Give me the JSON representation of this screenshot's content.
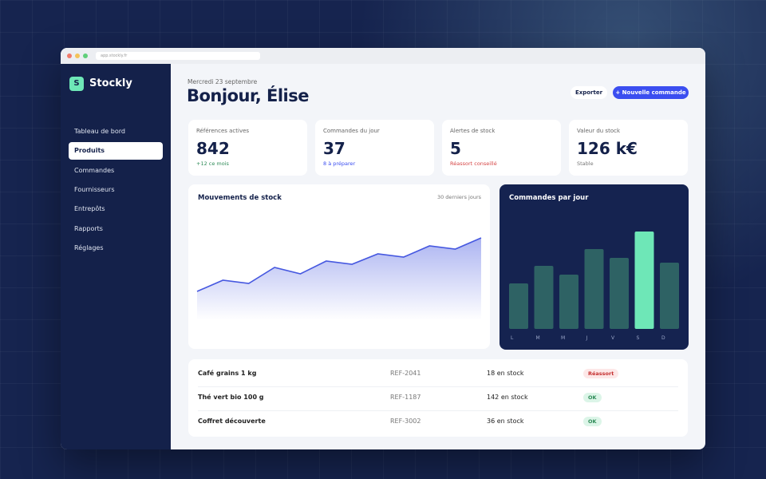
{
  "browser": {
    "url": "app.stockly.fr"
  },
  "sidebar": {
    "logo": "S",
    "brand": "Stockly",
    "nav": [
      "Tableau de bord",
      "Produits",
      "Commandes",
      "Fournisseurs",
      "Entrepôts",
      "Rapports",
      "Réglages"
    ]
  },
  "header": {
    "date": "Mercredi 23 septembre",
    "greeting": "Bonjour, Élise",
    "buttons": [
      "Exporter",
      "+ Nouvelle commande"
    ]
  },
  "kpis": [
    {
      "label": "Références actives",
      "value": 842,
      "note": "+12 ce mois"
    },
    {
      "label": "Commandes du jour",
      "value": 37,
      "note": "8 à préparer"
    },
    {
      "label": "Alertes de stock",
      "value": 5,
      "note": "Réassort conseillé"
    },
    {
      "label": "Valeur du stock",
      "value": "126 k€",
      "note": "Stable"
    }
  ],
  "stock_chart": {
    "type": "area",
    "title": "Mouvements de stock",
    "subtitle": "30 derniers jours",
    "color": "#4658e0",
    "values": [
      30,
      44,
      40,
      60,
      52,
      68,
      64,
      77,
      73,
      87,
      83,
      97
    ]
  },
  "orders_chart": {
    "type": "bar",
    "title": "Commandes par jour",
    "categories": [
      "L",
      "M",
      "M",
      "J",
      "V",
      "S",
      "D"
    ],
    "values": [
      57,
      79,
      68,
      100,
      89,
      122,
      83
    ],
    "colors": [
      "#2e6264",
      "#2e6264",
      "#2e6264",
      "#2e6264",
      "#2e6264",
      "#6ee7b7",
      "#2e6264"
    ]
  },
  "table": {
    "rows": [
      [
        "Café grains 1 kg",
        "REF-2041",
        "18 en stock",
        "Réassort"
      ],
      [
        "Thé vert bio 100 g",
        "REF-1187",
        "142 en stock",
        "OK"
      ],
      [
        "Coffret découverte",
        "REF-3002",
        "36 en stock",
        "OK"
      ]
    ]
  }
}
